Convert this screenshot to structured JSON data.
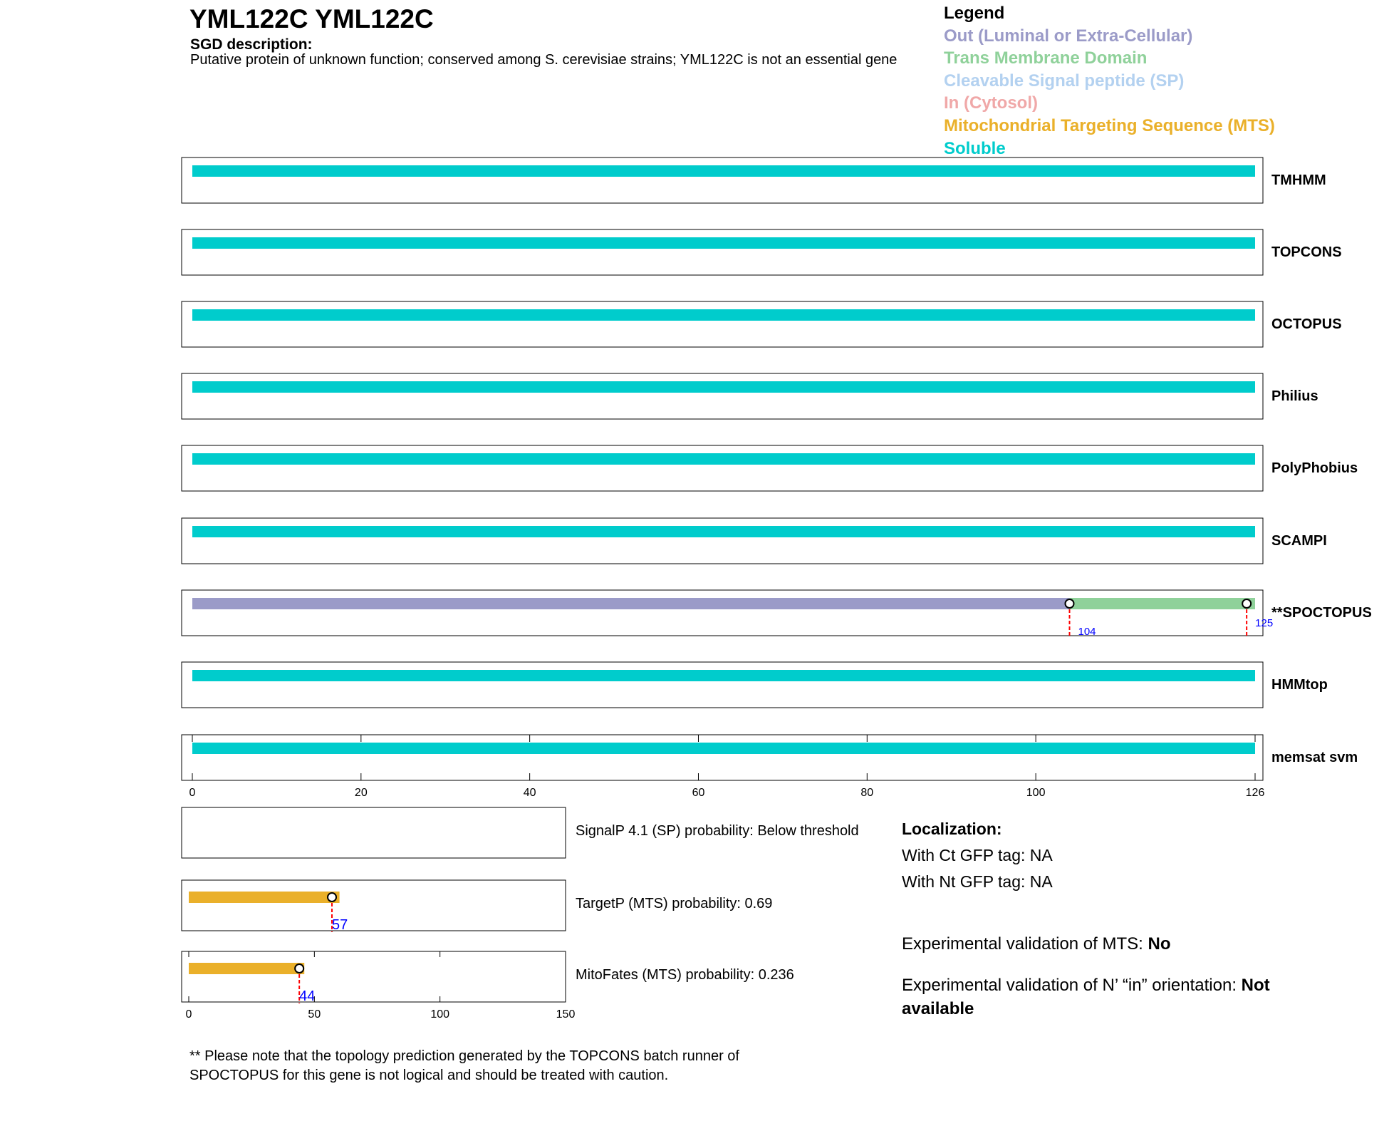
{
  "gene": {
    "title": "YML122C  YML122C"
  },
  "sgd": {
    "heading": "SGD description:",
    "text": "Putative protein of unknown function; conserved among S. cerevisiae strains; YML122C is not an essential gene"
  },
  "legend": {
    "heading": "Legend",
    "items": [
      {
        "label": "Out (Luminal or Extra-Cellular)",
        "color": "#9b9bc8"
      },
      {
        "label": "Trans Membrane Domain",
        "color": "#8fd19a"
      },
      {
        "label": "Cleavable Signal peptide (SP)",
        "color": "#b3d1f0"
      },
      {
        "label": "In (Cytosol)",
        "color": "#f0a8a8"
      },
      {
        "label": "Mitochondrial Targeting Sequence (MTS)",
        "color": "#eab02a"
      },
      {
        "label": "Soluble",
        "color": "#00cccc"
      }
    ]
  },
  "colors": {
    "soluble": "#00cccc",
    "out": "#9b9bc8",
    "tm": "#8fd19a",
    "mts": "#eab02a",
    "cut": "#ff0000",
    "pos_label": "#0000ff"
  },
  "chart_data": [
    {
      "type": "bar",
      "xlim": [
        0,
        126
      ],
      "xticks": [
        0,
        20,
        40,
        60,
        80,
        100,
        126
      ],
      "tracks": [
        {
          "name": "TMHMM",
          "segments": [
            {
              "start": 0,
              "end": 126,
              "kind": "soluble"
            }
          ]
        },
        {
          "name": "TOPCONS",
          "segments": [
            {
              "start": 0,
              "end": 126,
              "kind": "soluble"
            }
          ]
        },
        {
          "name": "OCTOPUS",
          "segments": [
            {
              "start": 0,
              "end": 126,
              "kind": "soluble"
            }
          ]
        },
        {
          "name": "Philius",
          "segments": [
            {
              "start": 0,
              "end": 126,
              "kind": "soluble"
            }
          ]
        },
        {
          "name": "PolyPhobius",
          "segments": [
            {
              "start": 0,
              "end": 126,
              "kind": "soluble"
            }
          ]
        },
        {
          "name": "SCAMPI",
          "segments": [
            {
              "start": 0,
              "end": 126,
              "kind": "soluble"
            }
          ]
        },
        {
          "name": "**SPOCTOPUS",
          "segments": [
            {
              "start": 0,
              "end": 104,
              "kind": "out"
            },
            {
              "start": 104,
              "end": 126,
              "kind": "tm"
            }
          ],
          "markers": [
            {
              "pos": 104,
              "label": "104"
            },
            {
              "pos": 125,
              "label": "125"
            }
          ]
        },
        {
          "name": "HMMtop",
          "segments": [
            {
              "start": 0,
              "end": 126,
              "kind": "soluble"
            }
          ]
        },
        {
          "name": "memsat svm",
          "segments": [
            {
              "start": 0,
              "end": 126,
              "kind": "soluble"
            }
          ]
        }
      ]
    },
    {
      "type": "bar",
      "xlim": [
        0,
        150
      ],
      "xticks": [
        0,
        50,
        100,
        150
      ],
      "tracks": [
        {
          "name": "SignalP 4.1 (SP) probability: Below threshold",
          "segments": []
        },
        {
          "name": "TargetP (MTS) probability: 0.69",
          "segments": [
            {
              "start": 0,
              "end": 60,
              "kind": "mts"
            }
          ],
          "markers": [
            {
              "pos": 57,
              "label": "57"
            }
          ]
        },
        {
          "name": "MitoFates (MTS) probability: 0.236",
          "segments": [
            {
              "start": 0,
              "end": 46,
              "kind": "mts"
            }
          ],
          "markers": [
            {
              "pos": 44,
              "label": "44"
            }
          ]
        }
      ]
    }
  ],
  "localization": {
    "heading": "Localization:",
    "ct": "With Ct GFP tag: NA",
    "nt": "With Nt GFP tag: NA"
  },
  "validation": {
    "mts_prefix": "Experimental validation of MTS: ",
    "mts_value": "No",
    "orient_prefix": "Experimental validation of N’ “in” orientation: ",
    "orient_value": "Not available"
  },
  "note": "** Please note that the topology prediction generated by the TOPCONS batch runner of SPOCTOPUS for this gene is not logical and should be treated with caution."
}
